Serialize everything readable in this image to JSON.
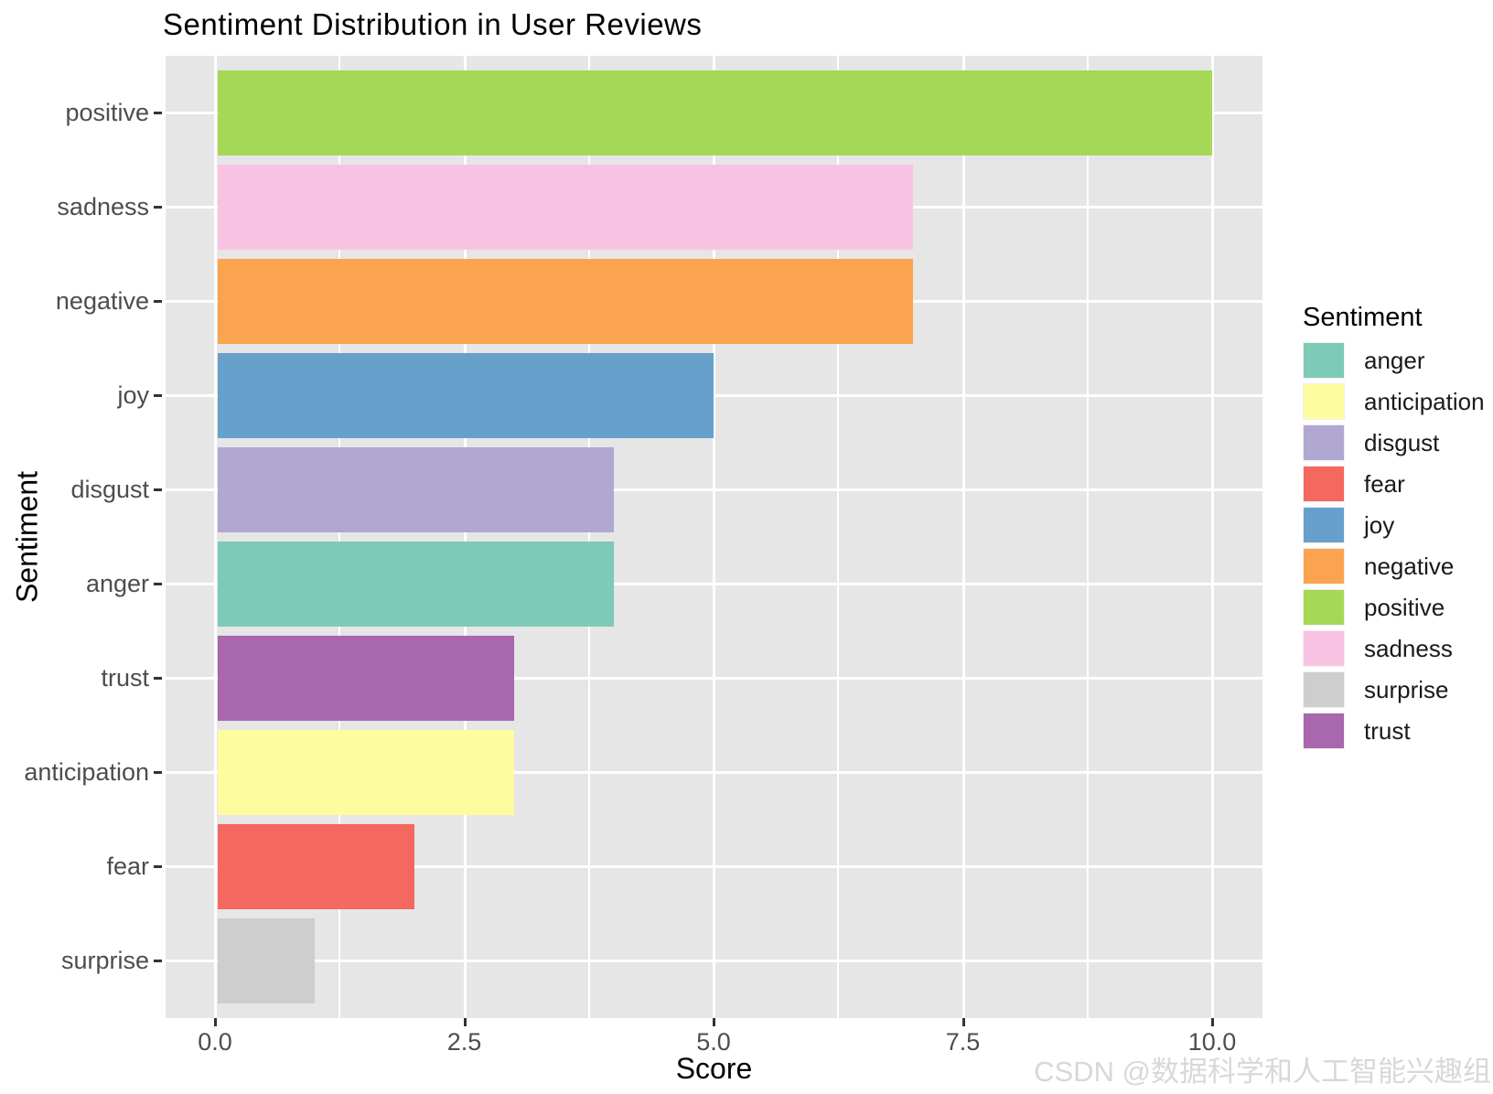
{
  "title": "Sentiment Distribution in User Reviews",
  "watermark": "CSDN @数据科学和人工智能兴趣组",
  "chart_data": {
    "type": "bar",
    "orientation": "horizontal",
    "title": "Sentiment Distribution in User Reviews",
    "xlabel": "Score",
    "ylabel": "Sentiment",
    "xlim": [
      0,
      10
    ],
    "x_major_ticks": [
      0,
      2.5,
      5,
      7.5,
      10
    ],
    "x_tick_labels": [
      "0.0",
      "2.5",
      "5.0",
      "7.5",
      "10.0"
    ],
    "x_minor_gridlines": [
      1.25,
      3.75,
      6.25,
      8.75
    ],
    "grid": true,
    "panel_background": "#e6e6e6",
    "gridline_color": "#ffffff",
    "bars_top_to_bottom": [
      {
        "category": "positive",
        "value": 10,
        "color": "#a5d857"
      },
      {
        "category": "sadness",
        "value": 7,
        "color": "#f8c3e2"
      },
      {
        "category": "negative",
        "value": 7,
        "color": "#faa44f"
      },
      {
        "category": "joy",
        "value": 5,
        "color": "#68a0cc"
      },
      {
        "category": "disgust",
        "value": 4,
        "color": "#b0a8d0"
      },
      {
        "category": "anger",
        "value": 4,
        "color": "#7dcab6"
      },
      {
        "category": "trust",
        "value": 3,
        "color": "#a967ad"
      },
      {
        "category": "anticipation",
        "value": 3,
        "color": "#fdfd9f"
      },
      {
        "category": "fear",
        "value": 2,
        "color": "#f5685f"
      },
      {
        "category": "surprise",
        "value": 1,
        "color": "#cecece"
      }
    ],
    "legend": {
      "title": "Sentiment",
      "position": "right",
      "items": [
        {
          "label": "anger",
          "color": "#7dcab6"
        },
        {
          "label": "anticipation",
          "color": "#fdfd9f"
        },
        {
          "label": "disgust",
          "color": "#b0a8d0"
        },
        {
          "label": "fear",
          "color": "#f5685f"
        },
        {
          "label": "joy",
          "color": "#68a0cc"
        },
        {
          "label": "negative",
          "color": "#faa44f"
        },
        {
          "label": "positive",
          "color": "#a5d857"
        },
        {
          "label": "sadness",
          "color": "#f8c3e2"
        },
        {
          "label": "surprise",
          "color": "#cecece"
        },
        {
          "label": "trust",
          "color": "#a967ad"
        }
      ]
    }
  }
}
